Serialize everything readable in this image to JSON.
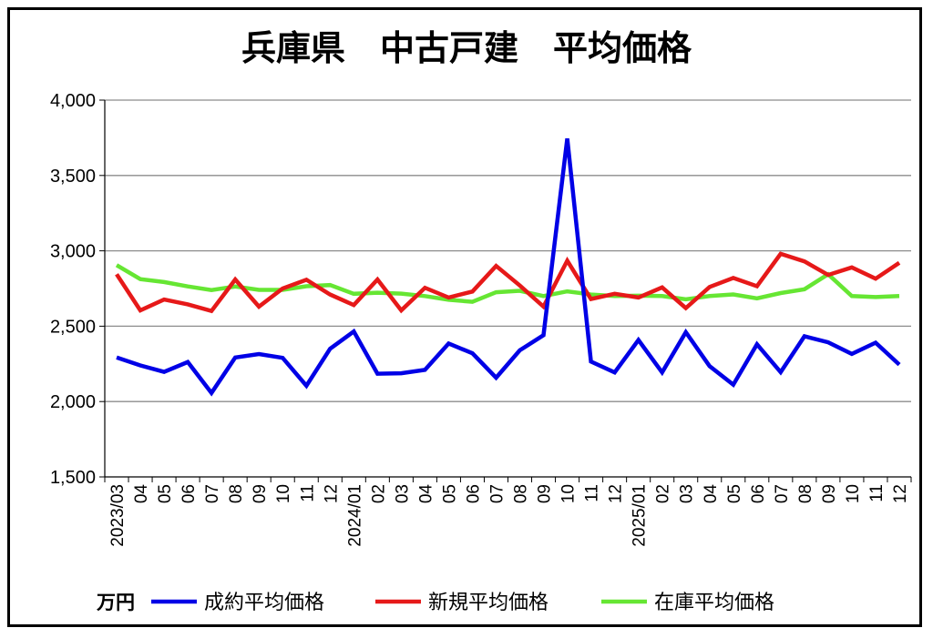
{
  "chart_data": {
    "type": "line",
    "title": "兵庫県　中古戸建　平均価格",
    "unit": "万円",
    "ylim": [
      1500,
      4000
    ],
    "yticks": [
      1500,
      2000,
      2500,
      3000,
      3500,
      4000
    ],
    "ytick_labels": [
      "1,500",
      "2,000",
      "2,500",
      "3,000",
      "3,500",
      "4,000"
    ],
    "grid": true,
    "legend": "bottom",
    "x": [
      "2023/03",
      "04",
      "05",
      "06",
      "07",
      "08",
      "09",
      "10",
      "11",
      "12",
      "2024/01",
      "02",
      "03",
      "04",
      "05",
      "06",
      "07",
      "08",
      "09",
      "10",
      "11",
      "12",
      "2025/01",
      "02",
      "03",
      "04",
      "05",
      "06",
      "07",
      "08",
      "09",
      "10",
      "11",
      "12"
    ],
    "series": [
      {
        "name": "成約平均価格",
        "color": "#0000e6",
        "values": [
          2292,
          2240,
          2197,
          2262,
          2057,
          2292,
          2315,
          2290,
          2105,
          2350,
          2465,
          2185,
          2188,
          2210,
          2385,
          2320,
          2158,
          2340,
          2440,
          3745,
          2265,
          2193,
          2408,
          2193,
          2460,
          2235,
          2112,
          2380,
          2195,
          2433,
          2393,
          2316,
          2391,
          2245
        ]
      },
      {
        "name": "新規平均価格",
        "color": "#e61919",
        "values": [
          2845,
          2605,
          2677,
          2645,
          2601,
          2810,
          2630,
          2750,
          2808,
          2710,
          2640,
          2810,
          2605,
          2755,
          2690,
          2730,
          2900,
          2770,
          2630,
          2935,
          2680,
          2715,
          2690,
          2757,
          2620,
          2760,
          2820,
          2765,
          2980,
          2930,
          2840,
          2890,
          2815,
          2920
        ]
      },
      {
        "name": "在庫平均価格",
        "color": "#66e633",
        "values": [
          2905,
          2812,
          2793,
          2764,
          2740,
          2763,
          2741,
          2741,
          2765,
          2773,
          2715,
          2722,
          2716,
          2700,
          2675,
          2662,
          2725,
          2735,
          2700,
          2731,
          2710,
          2700,
          2702,
          2700,
          2678,
          2700,
          2711,
          2685,
          2720,
          2745,
          2845,
          2700,
          2693,
          2700
        ]
      }
    ]
  }
}
